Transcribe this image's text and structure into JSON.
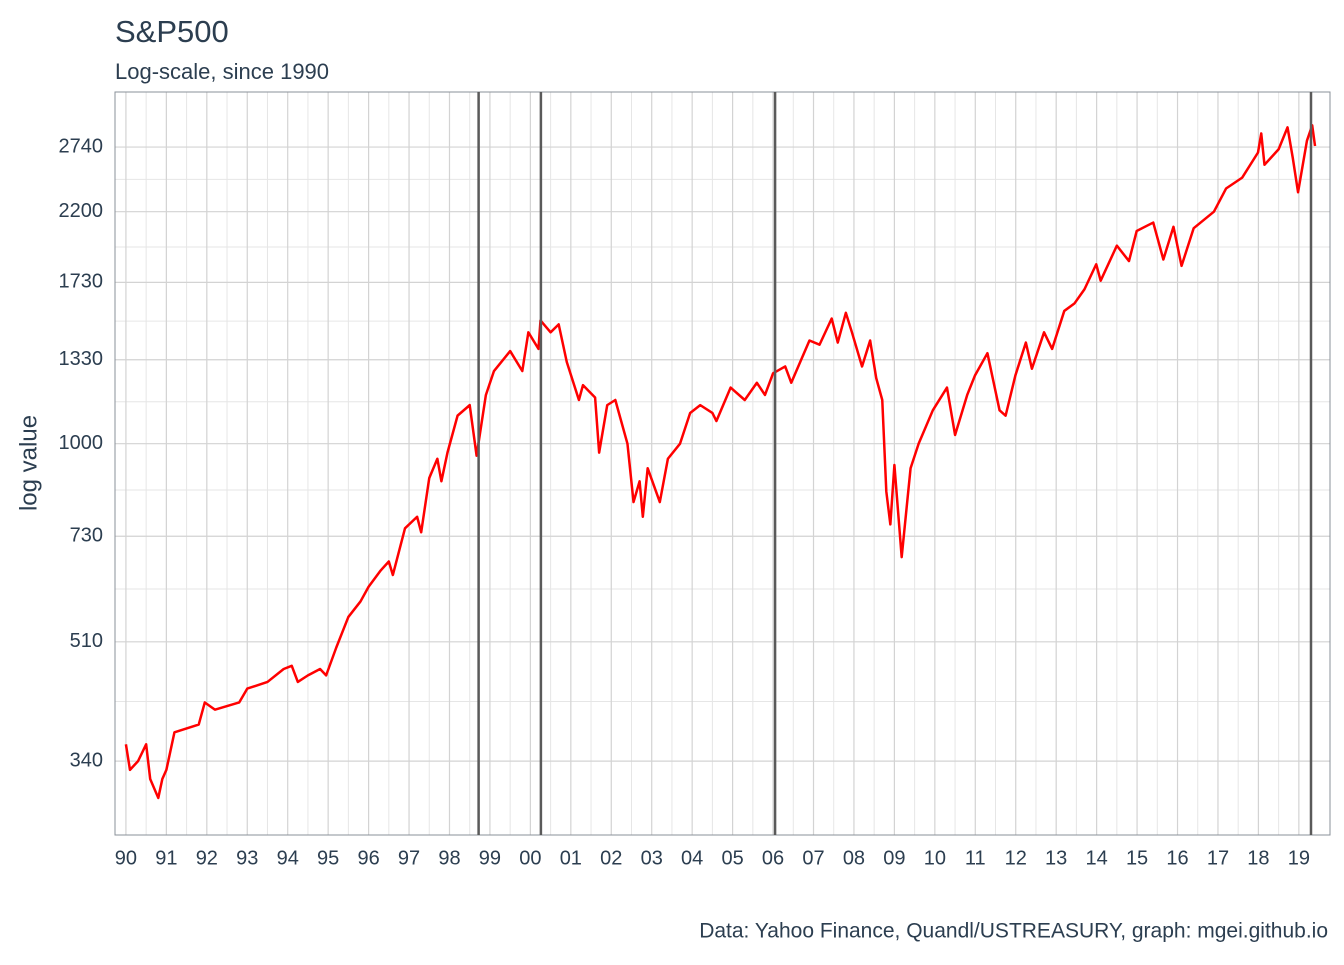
{
  "chart_data": {
    "type": "line",
    "title": "S&P500",
    "subtitle": "Log-scale, since 1990",
    "ylabel": "log value",
    "caption": "Data: Yahoo Finance, Quandl/USTREASURY, graph: mgei.github.io",
    "log_scale": true,
    "grid": true,
    "color": "#ff0000",
    "vline_color": "#5a5a5a",
    "xlim": [
      1989.73,
      2019.77
    ],
    "ylim": [
      264.5,
      3304
    ],
    "yticks": [
      340,
      510,
      730,
      1000,
      1330,
      1730,
      2200,
      2740
    ],
    "xticks": [
      {
        "value": 1990,
        "label": "90"
      },
      {
        "value": 1991,
        "label": "91"
      },
      {
        "value": 1992,
        "label": "92"
      },
      {
        "value": 1993,
        "label": "93"
      },
      {
        "value": 1994,
        "label": "94"
      },
      {
        "value": 1995,
        "label": "95"
      },
      {
        "value": 1996,
        "label": "96"
      },
      {
        "value": 1997,
        "label": "97"
      },
      {
        "value": 1998,
        "label": "98"
      },
      {
        "value": 1999,
        "label": "99"
      },
      {
        "value": 2000,
        "label": "00"
      },
      {
        "value": 2001,
        "label": "01"
      },
      {
        "value": 2002,
        "label": "02"
      },
      {
        "value": 2003,
        "label": "03"
      },
      {
        "value": 2004,
        "label": "04"
      },
      {
        "value": 2005,
        "label": "05"
      },
      {
        "value": 2006,
        "label": "06"
      },
      {
        "value": 2007,
        "label": "07"
      },
      {
        "value": 2008,
        "label": "08"
      },
      {
        "value": 2009,
        "label": "09"
      },
      {
        "value": 2010,
        "label": "10"
      },
      {
        "value": 2011,
        "label": "11"
      },
      {
        "value": 2012,
        "label": "12"
      },
      {
        "value": 2013,
        "label": "13"
      },
      {
        "value": 2014,
        "label": "14"
      },
      {
        "value": 2015,
        "label": "15"
      },
      {
        "value": 2016,
        "label": "16"
      },
      {
        "value": 2017,
        "label": "17"
      },
      {
        "value": 2018,
        "label": "18"
      },
      {
        "value": 2019,
        "label": "19"
      }
    ],
    "vlines": [
      1998.72,
      2000.26,
      2006.05,
      2019.3
    ],
    "x": [
      1990.0,
      1990.1,
      1990.3,
      1990.5,
      1990.6,
      1990.8,
      1990.9,
      1991.0,
      1991.2,
      1991.5,
      1991.8,
      1991.95,
      1992.2,
      1992.5,
      1992.8,
      1993.0,
      1993.5,
      1993.9,
      1994.1,
      1994.25,
      1994.5,
      1994.8,
      1994.95,
      1995.2,
      1995.5,
      1995.8,
      1996.0,
      1996.3,
      1996.5,
      1996.6,
      1996.9,
      1997.2,
      1997.3,
      1997.5,
      1997.7,
      1997.8,
      1997.95,
      1998.2,
      1998.5,
      1998.67,
      1998.9,
      1999.1,
      1999.5,
      1999.8,
      1999.95,
      2000.2,
      2000.25,
      2000.5,
      2000.7,
      2000.9,
      2001.2,
      2001.3,
      2001.6,
      2001.7,
      2001.9,
      2002.1,
      2002.4,
      2002.55,
      2002.7,
      2002.78,
      2002.9,
      2003.2,
      2003.4,
      2003.7,
      2003.95,
      2004.2,
      2004.5,
      2004.6,
      2004.95,
      2005.3,
      2005.6,
      2005.8,
      2006.0,
      2006.3,
      2006.45,
      2006.9,
      2007.15,
      2007.45,
      2007.6,
      2007.8,
      2007.95,
      2008.2,
      2008.4,
      2008.55,
      2008.7,
      2008.8,
      2008.9,
      2009.0,
      2009.18,
      2009.4,
      2009.6,
      2009.95,
      2010.3,
      2010.5,
      2010.8,
      2010.99,
      2011.3,
      2011.6,
      2011.75,
      2011.99,
      2012.25,
      2012.4,
      2012.7,
      2012.9,
      2013.2,
      2013.45,
      2013.7,
      2013.99,
      2014.1,
      2014.5,
      2014.8,
      2014.99,
      2015.4,
      2015.65,
      2015.9,
      2016.1,
      2016.4,
      2016.9,
      2017.2,
      2017.6,
      2017.99,
      2018.07,
      2018.15,
      2018.5,
      2018.72,
      2018.85,
      2018.98,
      2019.2,
      2019.33,
      2019.4
    ],
    "values": [
      360,
      330,
      340,
      360,
      320,
      300,
      320,
      330,
      375,
      380,
      385,
      415,
      405,
      410,
      415,
      435,
      445,
      465,
      470,
      445,
      455,
      465,
      455,
      500,
      555,
      585,
      615,
      650,
      670,
      640,
      750,
      780,
      740,
      890,
      950,
      880,
      970,
      1100,
      1140,
      960,
      1180,
      1280,
      1370,
      1280,
      1460,
      1380,
      1520,
      1460,
      1500,
      1320,
      1160,
      1220,
      1170,
      970,
      1140,
      1160,
      1000,
      820,
      880,
      780,
      920,
      820,
      950,
      1000,
      1110,
      1140,
      1110,
      1080,
      1210,
      1160,
      1230,
      1180,
      1270,
      1300,
      1230,
      1420,
      1400,
      1530,
      1410,
      1560,
      1460,
      1300,
      1420,
      1250,
      1160,
      850,
      760,
      930,
      680,
      920,
      1000,
      1120,
      1210,
      1030,
      1180,
      1260,
      1360,
      1120,
      1100,
      1260,
      1410,
      1290,
      1460,
      1380,
      1570,
      1610,
      1690,
      1840,
      1740,
      1960,
      1860,
      2060,
      2120,
      1870,
      2090,
      1830,
      2080,
      2200,
      2380,
      2470,
      2690,
      2870,
      2580,
      2720,
      2930,
      2640,
      2350,
      2800,
      2950,
      2750
    ]
  }
}
